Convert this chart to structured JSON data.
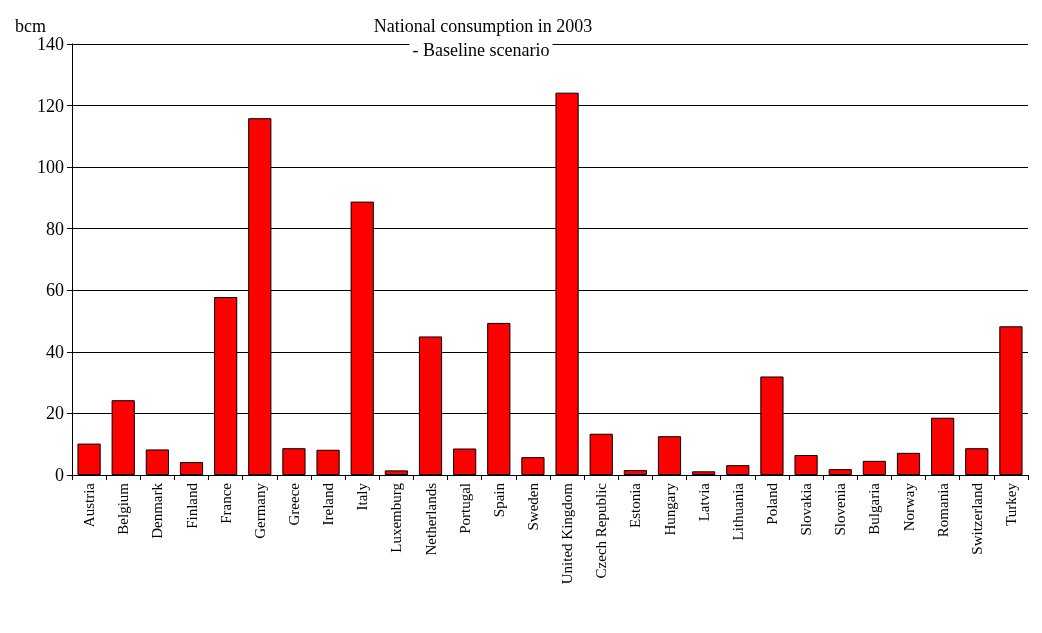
{
  "chart_data": {
    "type": "bar",
    "title": "National consumption in 2003",
    "subtitle": "- Baseline scenario",
    "ylabel": "bcm",
    "categories": [
      "Austria",
      "Belgium",
      "Denmark",
      "Finland",
      "France",
      "Germany",
      "Greece",
      "Ireland",
      "Italy",
      "Luxemburg",
      "Netherlands",
      "Portugal",
      "Spain",
      "Sweden",
      "United Kingdom",
      "Czech Republic",
      "Estonia",
      "Hungary",
      "Latvia",
      "Lithuania",
      "Poland",
      "Slovakia",
      "Slovenia",
      "Bulgaria",
      "Norway",
      "Romania",
      "Switzerland",
      "Turkey"
    ],
    "values": [
      10.2,
      24.3,
      8.3,
      4.2,
      57.8,
      115.9,
      8.7,
      8.2,
      88.8,
      1.5,
      45,
      8.6,
      49.4,
      5.8,
      124.2,
      13.4,
      1.6,
      12.6,
      1.2,
      3.2,
      32,
      6.5,
      1.9,
      4.6,
      7.2,
      18.6,
      8.7,
      48.3
    ],
    "color": "#ff0000",
    "ylim": [
      0,
      140
    ],
    "yticks": [
      0,
      20,
      40,
      60,
      80,
      100,
      120,
      140
    ],
    "grid": "y"
  }
}
